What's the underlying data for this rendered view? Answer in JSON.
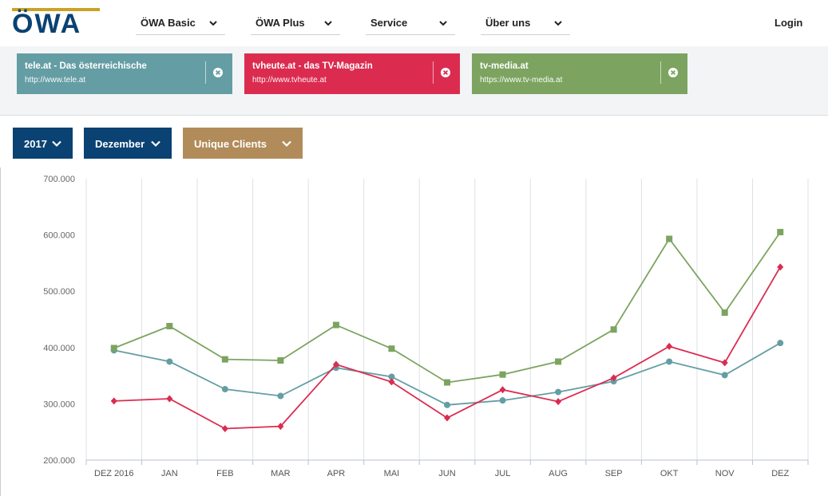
{
  "header": {
    "logo_text": "ÖWA",
    "nav": [
      {
        "label": "ÖWA Basic"
      },
      {
        "label": "ÖWA Plus"
      },
      {
        "label": "Service"
      },
      {
        "label": "Über uns"
      }
    ],
    "login_label": "Login"
  },
  "sites": [
    {
      "title": "tele.at - Das österreichische",
      "url": "http://www.tele.at",
      "color": "#649ea4"
    },
    {
      "title": "tvheute.at - das TV-Magazin",
      "url": "http://www.tvheute.at",
      "color": "#db2c50"
    },
    {
      "title": "tv-media.at",
      "url": "https://www.tv-media.at",
      "color": "#7ca460"
    }
  ],
  "filters": {
    "year": "2017",
    "month": "Dezember",
    "metric": "Unique Clients",
    "year_color": "#0a4273",
    "month_color": "#0a4273",
    "metric_color": "#b18c5a"
  },
  "chart_data": {
    "type": "line",
    "categories": [
      "DEZ 2016",
      "JAN",
      "FEB",
      "MAR",
      "APR",
      "MAI",
      "JUN",
      "JUL",
      "AUG",
      "SEP",
      "OKT",
      "NOV",
      "DEZ"
    ],
    "ylim": [
      200000,
      700000
    ],
    "yticks": [
      "200.000",
      "300.000",
      "400.000",
      "500.000",
      "600.000",
      "700.000"
    ],
    "grid": true,
    "series": [
      {
        "name": "tele.at - Das österreichische",
        "color": "#649ea4",
        "marker": "circle",
        "values": [
          395000,
          375000,
          326000,
          314000,
          364000,
          348000,
          298000,
          306000,
          321000,
          340000,
          375000,
          351000,
          408000
        ]
      },
      {
        "name": "tvheute.at - das TV-Magazin",
        "color": "#db2c50",
        "marker": "diamond",
        "values": [
          305000,
          309000,
          256000,
          260000,
          370000,
          339000,
          275000,
          325000,
          304000,
          346000,
          402000,
          373000,
          543000
        ]
      },
      {
        "name": "tv-media.at",
        "color": "#7ca460",
        "marker": "square",
        "values": [
          399000,
          438000,
          379000,
          377000,
          440000,
          398000,
          338000,
          352000,
          375000,
          432000,
          593000,
          462000,
          605000
        ]
      }
    ]
  }
}
